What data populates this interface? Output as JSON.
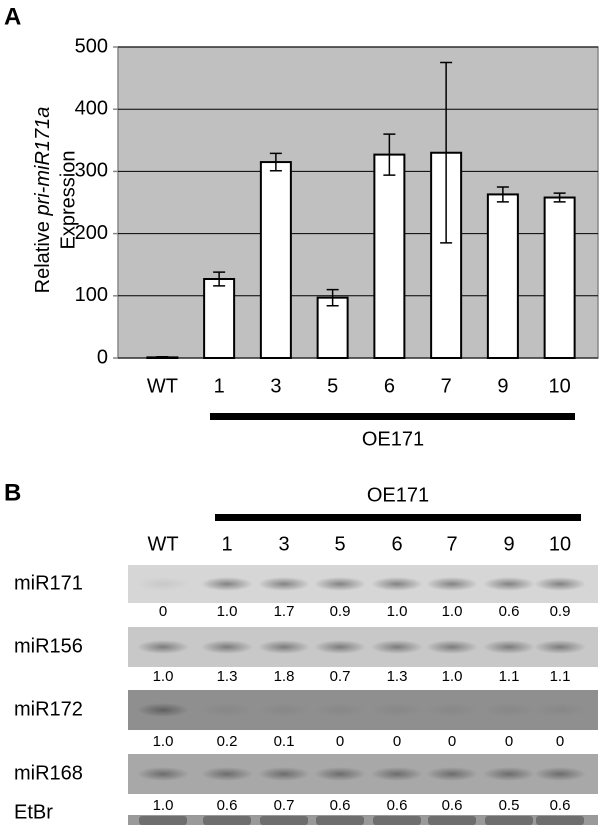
{
  "chart_data": {
    "type": "bar",
    "panel_label": "A",
    "ylabel": {
      "prefix": "Relative",
      "italic": "pri-miR171a",
      "line2": "Expression"
    },
    "categories": [
      "WT",
      "1",
      "3",
      "5",
      "6",
      "7",
      "9",
      "10"
    ],
    "values": [
      1,
      127,
      315,
      97,
      327,
      330,
      263,
      258
    ],
    "errors": [
      1,
      11,
      14,
      13,
      33,
      145,
      12,
      7
    ],
    "color": "#ffffff",
    "plot_background": "#c0c0c0",
    "ylim": [
      0,
      500
    ],
    "yticks": [
      0,
      100,
      200,
      300,
      400,
      500
    ],
    "grid": true,
    "group_label": "OE171"
  },
  "blot": {
    "panel_label": "B",
    "group_label": "OE171",
    "lanes": [
      "WT",
      "1",
      "3",
      "5",
      "6",
      "7",
      "9",
      "10"
    ],
    "rows": [
      {
        "name": "miR171",
        "values": [
          "0",
          "1.0",
          "1.7",
          "0.9",
          "1.0",
          "1.0",
          "0.6",
          "0.9"
        ]
      },
      {
        "name": "miR156",
        "values": [
          "1.0",
          "1.3",
          "1.8",
          "0.7",
          "1.3",
          "1.0",
          "1.1",
          "1.1"
        ]
      },
      {
        "name": "miR172",
        "values": [
          "1.0",
          "0.2",
          "0.1",
          "0",
          "0",
          "0",
          "0",
          "0"
        ]
      },
      {
        "name": "miR168",
        "values": [
          "1.0",
          "0.6",
          "0.7",
          "0.6",
          "0.6",
          "0.6",
          "0.5",
          "0.6"
        ]
      }
    ],
    "loading_control": "EtBr"
  }
}
